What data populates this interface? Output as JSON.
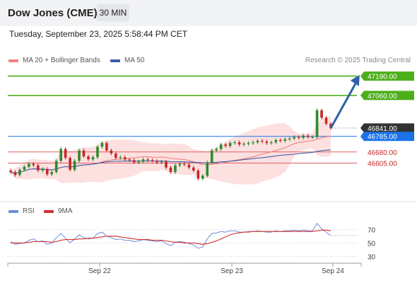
{
  "header": {
    "title": "Dow Jones (CME)",
    "timeframe": "30 MIN"
  },
  "timestamp": "Tuesday, September 23, 2025 5:58:44 PM CET",
  "legend": {
    "ma20_label": "MA 20 + Bollinger Bands",
    "ma50_label": "MA 50",
    "rsi_label": "RSI",
    "ma9_label": "9MA"
  },
  "credit": "Research © 2025 Trading Central",
  "colors": {
    "up": "#2d8a2d",
    "down": "#c62828",
    "green_level": "#4caf1a",
    "blue_level": "#1a73e8",
    "red_level": "#e06060",
    "ma20": "#f08080",
    "ma50": "#3a5fa8",
    "band": "#fcd6d6",
    "rsi": "#6a8fd8",
    "rsi_ma": "#d32f2f",
    "current": "#333333"
  },
  "price_levels": [
    {
      "value": 47190.0,
      "label": "47190.00",
      "kind": "resistance"
    },
    {
      "value": 47060.0,
      "label": "47060.00",
      "kind": "resistance"
    },
    {
      "value": 46841.0,
      "label": "46841.00",
      "kind": "current"
    },
    {
      "value": 46785.0,
      "label": "46785.00",
      "kind": "pivot"
    },
    {
      "value": 46680.0,
      "label": "46680.00",
      "kind": "support"
    },
    {
      "value": 46605.0,
      "label": "46605.00",
      "kind": "support"
    }
  ],
  "rsi_levels": [
    {
      "value": 70,
      "label": "70"
    },
    {
      "value": 50,
      "label": "50"
    },
    {
      "value": 30,
      "label": "30"
    }
  ],
  "chart_data": {
    "type": "candlestick",
    "xlabels": [
      "Sep 22",
      "Sep 23",
      "Sep 24"
    ],
    "price_ylim": [
      46360,
      47250
    ],
    "rsi_ylim": [
      20,
      85
    ],
    "grid": false,
    "forecast_arrow": {
      "from_index": 70,
      "from_price": 46840,
      "to_index": 76,
      "to_price": 47180
    },
    "candles_closes": [
      46545,
      46525,
      46560,
      46580,
      46600,
      46590,
      46555,
      46565,
      46530,
      46545,
      46620,
      46700,
      46640,
      46560,
      46620,
      46690,
      46650,
      46630,
      46645,
      46715,
      46740,
      46690,
      46670,
      46640,
      46645,
      46630,
      46625,
      46610,
      46615,
      46630,
      46625,
      46620,
      46610,
      46615,
      46575,
      46545,
      46590,
      46600,
      46595,
      46575,
      46555,
      46500,
      46520,
      46610,
      46690,
      46700,
      46730,
      46720,
      46740,
      46745,
      46730,
      46735,
      46740,
      46745,
      46755,
      46750,
      46740,
      46745,
      46760,
      46755,
      46765,
      46770,
      46780,
      46775,
      46790,
      46780,
      46780,
      46960,
      46910,
      46870,
      46841
    ],
    "rsi_values": [
      52,
      48,
      49,
      50,
      54,
      56,
      52,
      53,
      48,
      50,
      58,
      64,
      57,
      50,
      56,
      62,
      58,
      56,
      57,
      64,
      66,
      60,
      58,
      55,
      56,
      54,
      54,
      52,
      53,
      55,
      54,
      53,
      52,
      53,
      49,
      46,
      51,
      52,
      51,
      49,
      47,
      42,
      44,
      56,
      64,
      65,
      67,
      66,
      68,
      68,
      66,
      66,
      67,
      67,
      68,
      67,
      66,
      66,
      68,
      67,
      68,
      68,
      69,
      68,
      69,
      68,
      68,
      79,
      71,
      66,
      61
    ],
    "rsi_ma_values": [
      50,
      50,
      50,
      50,
      51,
      52,
      52,
      52,
      52,
      51,
      52,
      54,
      55,
      55,
      55,
      56,
      56,
      57,
      57,
      58,
      59,
      60,
      60,
      60,
      59,
      58,
      57,
      56,
      55,
      55,
      55,
      54,
      54,
      54,
      53,
      52,
      51,
      51,
      50,
      50,
      50,
      49,
      48,
      49,
      51,
      53,
      56,
      59,
      62,
      64,
      65,
      66,
      66,
      67,
      67,
      67,
      67,
      67,
      67,
      67,
      67,
      67,
      67,
      67,
      67,
      67,
      67,
      68,
      69,
      69,
      68
    ]
  }
}
